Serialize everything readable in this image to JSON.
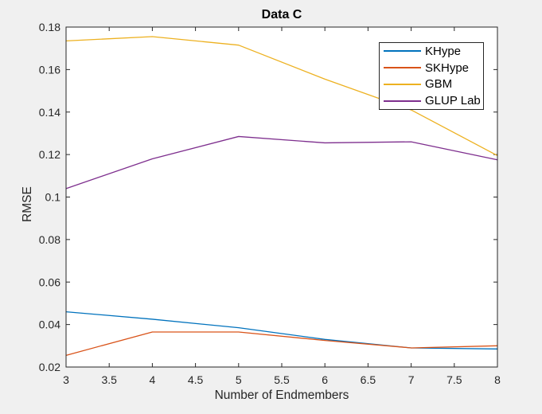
{
  "colors": {
    "figure_bg": "#F0F0F0",
    "plot_bg": "#FFFFFF",
    "axis": "#262626",
    "title_text": "#000000",
    "legend_border": "#262626"
  },
  "chart_data": {
    "type": "line",
    "title": "Data C",
    "xlabel": "Number of Endmembers",
    "ylabel": "RMSE",
    "xlim": [
      3,
      8
    ],
    "ylim": [
      0.02,
      0.18
    ],
    "xticks": [
      3,
      3.5,
      4,
      4.5,
      5,
      5.5,
      6,
      6.5,
      7,
      7.5,
      8
    ],
    "yticks": [
      0.02,
      0.04,
      0.06,
      0.08,
      0.1,
      0.12,
      0.14,
      0.16,
      0.18
    ],
    "grid": false,
    "legend_position": "top-right",
    "x": [
      3,
      4,
      5,
      6,
      7,
      8
    ],
    "series": [
      {
        "name": "KHype",
        "color": "#0072BD",
        "values": [
          0.046,
          0.0425,
          0.0385,
          0.033,
          0.029,
          0.0285
        ]
      },
      {
        "name": "SKHype",
        "color": "#D95319",
        "values": [
          0.0255,
          0.0365,
          0.0365,
          0.0325,
          0.029,
          0.03
        ]
      },
      {
        "name": "GBM",
        "color": "#EDB120",
        "values": [
          0.1735,
          0.1755,
          0.1715,
          0.1555,
          0.141,
          0.1195
        ]
      },
      {
        "name": "GLUP Lab",
        "color": "#7E2F8E",
        "values": [
          0.104,
          0.118,
          0.1285,
          0.1255,
          0.126,
          0.1175
        ]
      }
    ]
  }
}
